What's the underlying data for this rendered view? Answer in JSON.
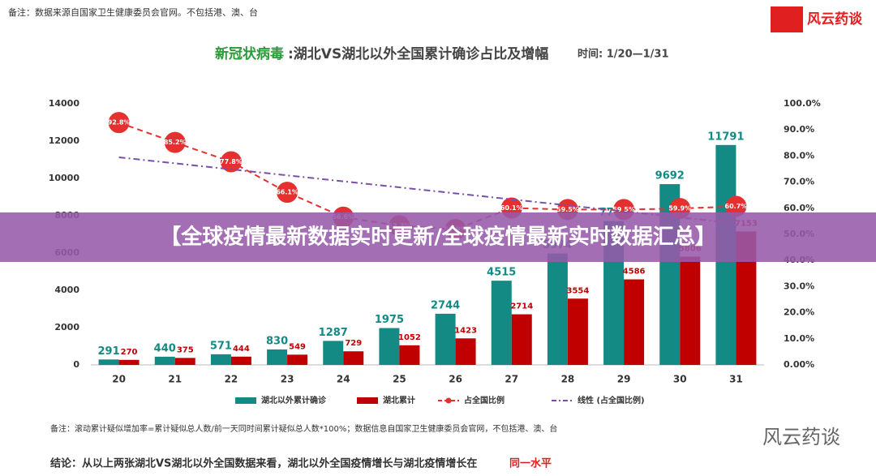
{
  "top_note": "备注：数据来源自国家卫生健康委员会官网。不包括港、澳、台",
  "logo": "风云药谈",
  "banner": "【全球疫情最新数据实时更新/全球疫情最新实时数据汇总】",
  "bottom_note": "备注：滚动累计疑似增加率=累计疑似总人数/前一天同时间累计疑似总人数*100%；数据信息自国家卫生健康委员会官网，不包括港、澳、台",
  "conclusion": "结论：从以上两张湖北VS湖北以外全国数据来看，湖北以外全国疫情增长与湖北疫情增长在",
  "conclusion_highlight": "同一水平",
  "watermark": "风云药谈",
  "chart_data": {
    "type": "bar",
    "title_highlight": "新冠状病毒",
    "title": ":湖北VS湖北以外全国累计确诊占比及增幅",
    "period": "时间: 1/20—1/31",
    "categories": [
      "20",
      "21",
      "22",
      "23",
      "24",
      "25",
      "26",
      "27",
      "28",
      "29",
      "30",
      "31"
    ],
    "series": [
      {
        "name": "湖北以外累计确诊",
        "color": "#138a84",
        "values": [
          291,
          440,
          571,
          830,
          1287,
          1975,
          2744,
          4515,
          5974,
          7711,
          9692,
          11791
        ]
      },
      {
        "name": "湖北累计",
        "color": "#c00000",
        "values": [
          270,
          375,
          444,
          549,
          729,
          1052,
          1423,
          2714,
          3554,
          4586,
          5806,
          7153
        ]
      },
      {
        "name": "占全国比例",
        "color": "#e53030",
        "axis": "y2",
        "type": "line",
        "values": [
          92.8,
          85.2,
          77.8,
          66.1,
          56.6,
          53.3,
          51.9,
          60.1,
          59.5,
          59.5,
          59.9,
          60.7
        ],
        "value_labels": [
          "92.8%",
          "85.2%",
          "77.8%",
          "66.1%",
          "56.6%",
          "53.3%",
          "51.9%",
          "60.1%",
          "59.5%",
          "59.5%",
          "59.9%",
          "60.7%"
        ]
      },
      {
        "name": "线性 (占全国比例)",
        "color": "#7b4fa8",
        "axis": "y2",
        "type": "trend",
        "values": [
          79.5,
          77.2,
          74.9,
          72.6,
          70.3,
          68.0,
          65.7,
          63.4,
          61.1,
          58.8,
          56.5,
          54.2
        ]
      }
    ],
    "ylim": [
      0,
      14000
    ],
    "yticks": [
      0,
      2000,
      4000,
      6000,
      8000,
      10000,
      12000,
      14000
    ],
    "y2lim": [
      0,
      100
    ],
    "y2ticks": [
      {
        "value": 0,
        "label": "0.00%"
      },
      {
        "value": 10,
        "label": "10.0%"
      },
      {
        "value": 20,
        "label": "20.0%"
      },
      {
        "value": 30,
        "label": "30.0%"
      },
      {
        "value": 40,
        "label": "40.0%"
      },
      {
        "value": 50,
        "label": "50.0%"
      },
      {
        "value": 60,
        "label": "60.0%"
      },
      {
        "value": 70,
        "label": "70.0%"
      },
      {
        "value": 80,
        "label": "80.0%"
      },
      {
        "value": 90,
        "label": "90.0%"
      },
      {
        "value": 100,
        "label": "100.0%"
      }
    ]
  }
}
